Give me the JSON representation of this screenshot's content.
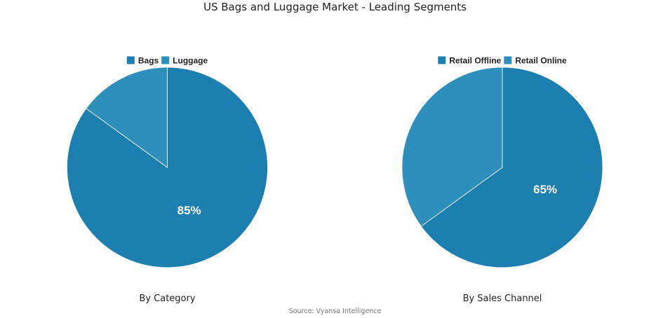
{
  "title": "US Bags and Luggage Market - Leading Segments",
  "source": "Source: Vyansa Intelligence",
  "colors": {
    "primary": "#1c7fb0",
    "secondary": "#2e8fbd",
    "separator": "#ffffff"
  },
  "chart_data": [
    {
      "type": "pie",
      "caption": "By Category",
      "legend_position": "top",
      "slices": [
        {
          "label": "Bags",
          "value": 85,
          "color": "#1c7fb0",
          "display": "85%"
        },
        {
          "label": "Luggage",
          "value": 15,
          "color": "#2e8fbd",
          "display": ""
        }
      ]
    },
    {
      "type": "pie",
      "caption": "By Sales Channel",
      "legend_position": "top",
      "slices": [
        {
          "label": "Retail Offline",
          "value": 65,
          "color": "#1c7fb0",
          "display": "65%"
        },
        {
          "label": "Retail Online",
          "value": 35,
          "color": "#2e8fbd",
          "display": ""
        }
      ]
    }
  ]
}
